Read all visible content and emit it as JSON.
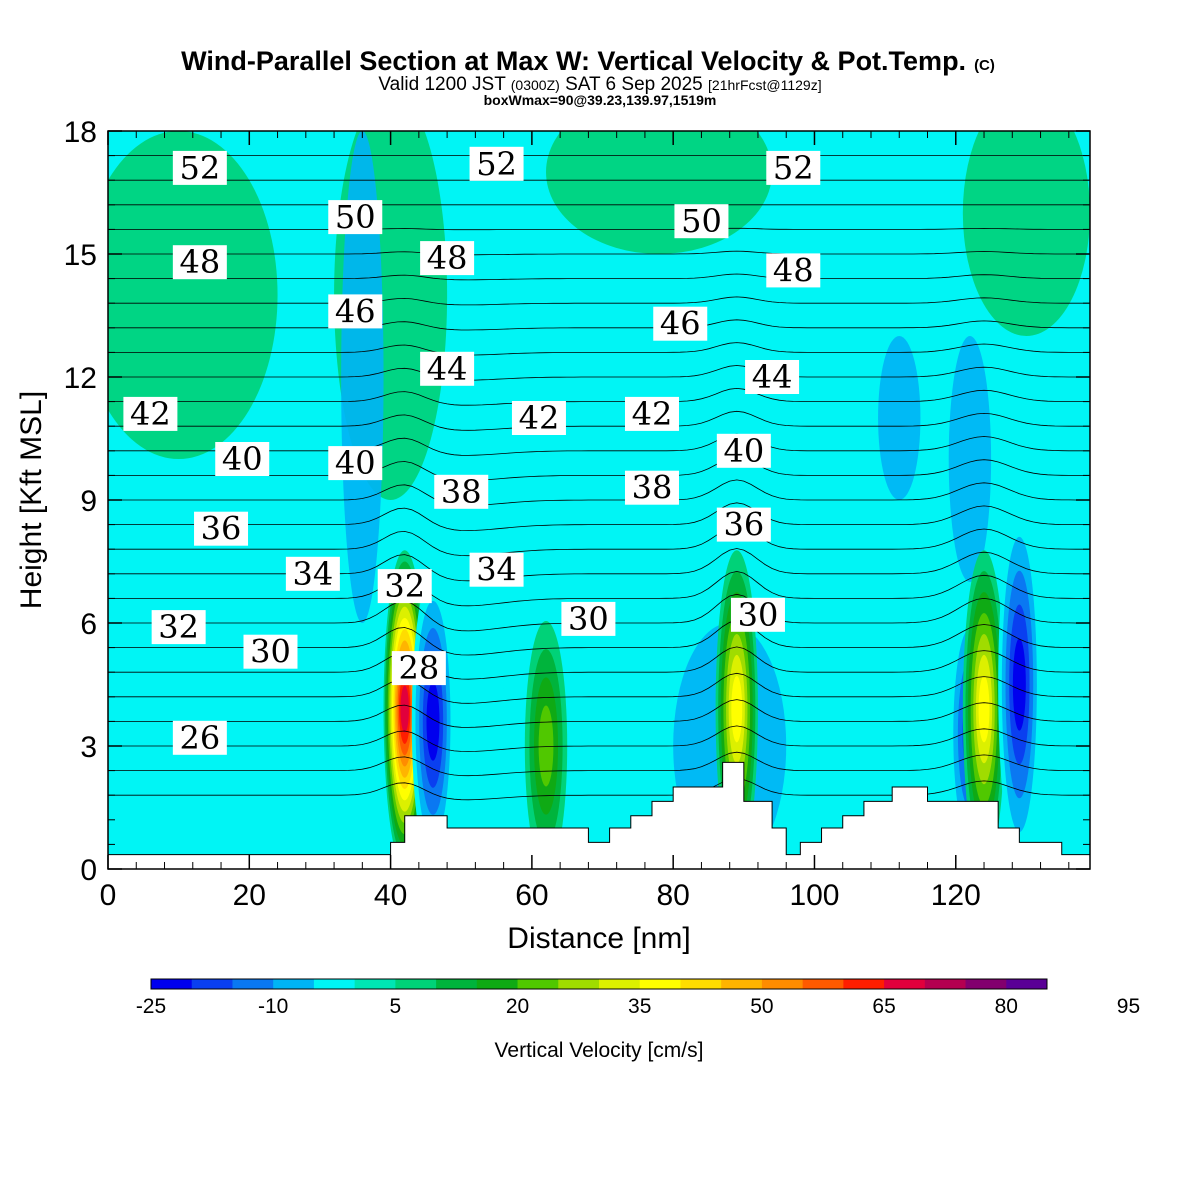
{
  "chart_data": {
    "type": "heatmap",
    "title": "Wind-Parallel Section at Max W: Vertical Velocity & Pot.Temp.",
    "title_mark": "(C)",
    "subtitle_main_a": "Valid 1200 JST",
    "subtitle_small_a": "(0300Z)",
    "subtitle_main_b": "SAT 6 Sep 2025",
    "subtitle_small_b": "[21hrFcst@1129z]",
    "subtitle_line3": "boxWmax=90@39.23,139.97,1519m",
    "xlabel": "Distance [nm]",
    "ylabel": "Height [Kft MSL]",
    "xlim": [
      0,
      139
    ],
    "ylim": [
      0,
      18
    ],
    "xticks": [
      "0",
      "20",
      "40",
      "60",
      "80",
      "100",
      "120"
    ],
    "yticks": [
      "0",
      "3",
      "6",
      "9",
      "12",
      "15",
      "18"
    ],
    "colorbar": {
      "label": "Vertical Velocity [cm/s]",
      "tick_labels": [
        "-25",
        "-10",
        "5",
        "20",
        "35",
        "50",
        "65",
        "80",
        "95"
      ],
      "colors": [
        "#0000ee",
        "#0a3ff0",
        "#0a78f2",
        "#00b4f5",
        "#00f5f5",
        "#00e6b4",
        "#00d278",
        "#00b43c",
        "#0faa14",
        "#50c800",
        "#a0dc00",
        "#dcf000",
        "#ffff00",
        "#ffdc00",
        "#ffb400",
        "#ff8c00",
        "#ff5a00",
        "#ff1e00",
        "#e1003c",
        "#b40050",
        "#82006e",
        "#5a0096"
      ]
    },
    "vertical_velocity_features": [
      {
        "x": 42,
        "z_top": 6.5,
        "w_max": 65,
        "sign": "up"
      },
      {
        "x": 46,
        "z_top": 6.0,
        "w_max": -25,
        "sign": "down"
      },
      {
        "x": 62,
        "z_top": 5.0,
        "w_max": 20,
        "sign": "up"
      },
      {
        "x": 89,
        "z_top": 6.5,
        "w_max": 35,
        "sign": "up"
      },
      {
        "x": 122,
        "z_top": 5.5,
        "w_max": -20,
        "sign": "down"
      },
      {
        "x": 124,
        "z_top": 6.5,
        "w_max": 35,
        "sign": "up"
      },
      {
        "x": 129,
        "z_top": 7.5,
        "w_max": -25,
        "sign": "down"
      }
    ],
    "contour_labels": [
      {
        "text": "52",
        "x": 13,
        "z": 17.1
      },
      {
        "text": "52",
        "x": 55,
        "z": 17.2
      },
      {
        "text": "52",
        "x": 97,
        "z": 17.1
      },
      {
        "text": "50",
        "x": 35,
        "z": 15.9
      },
      {
        "text": "50",
        "x": 84,
        "z": 15.8
      },
      {
        "text": "48",
        "x": 13,
        "z": 14.8
      },
      {
        "text": "48",
        "x": 48,
        "z": 14.9
      },
      {
        "text": "48",
        "x": 97,
        "z": 14.6
      },
      {
        "text": "46",
        "x": 35,
        "z": 13.6
      },
      {
        "text": "46",
        "x": 81,
        "z": 13.3
      },
      {
        "text": "44",
        "x": 48,
        "z": 12.2
      },
      {
        "text": "44",
        "x": 94,
        "z": 12.0
      },
      {
        "text": "42",
        "x": 6,
        "z": 11.1
      },
      {
        "text": "42",
        "x": 61,
        "z": 11.0
      },
      {
        "text": "42",
        "x": 77,
        "z": 11.1
      },
      {
        "text": "40",
        "x": 19,
        "z": 10.0
      },
      {
        "text": "40",
        "x": 35,
        "z": 9.9
      },
      {
        "text": "40",
        "x": 90,
        "z": 10.2
      },
      {
        "text": "38",
        "x": 50,
        "z": 9.2
      },
      {
        "text": "38",
        "x": 77,
        "z": 9.3
      },
      {
        "text": "36",
        "x": 16,
        "z": 8.3
      },
      {
        "text": "36",
        "x": 90,
        "z": 8.4
      },
      {
        "text": "34",
        "x": 29,
        "z": 7.2
      },
      {
        "text": "34",
        "x": 55,
        "z": 7.3
      },
      {
        "text": "32",
        "x": 42,
        "z": 6.9
      },
      {
        "text": "32",
        "x": 10,
        "z": 5.9
      },
      {
        "text": "30",
        "x": 68,
        "z": 6.1
      },
      {
        "text": "30",
        "x": 92,
        "z": 6.2
      },
      {
        "text": "30",
        "x": 23,
        "z": 5.3
      },
      {
        "text": "28",
        "x": 44,
        "z": 4.9
      },
      {
        "text": "26",
        "x": 13,
        "z": 3.2
      }
    ],
    "terrain_profile": {
      "x": [
        0,
        39,
        40,
        42,
        48,
        61,
        68,
        71,
        74,
        77,
        80,
        87,
        90,
        94,
        96,
        98,
        101,
        104,
        107,
        111,
        116,
        126,
        129,
        135,
        139
      ],
      "z": [
        0.35,
        0.35,
        0.65,
        1.3,
        1.0,
        1.0,
        0.65,
        1.0,
        1.3,
        1.65,
        2.0,
        2.6,
        1.65,
        1.0,
        0.35,
        0.65,
        1.0,
        1.3,
        1.65,
        2.0,
        1.65,
        1.0,
        0.65,
        0.35,
        0.35
      ]
    }
  }
}
